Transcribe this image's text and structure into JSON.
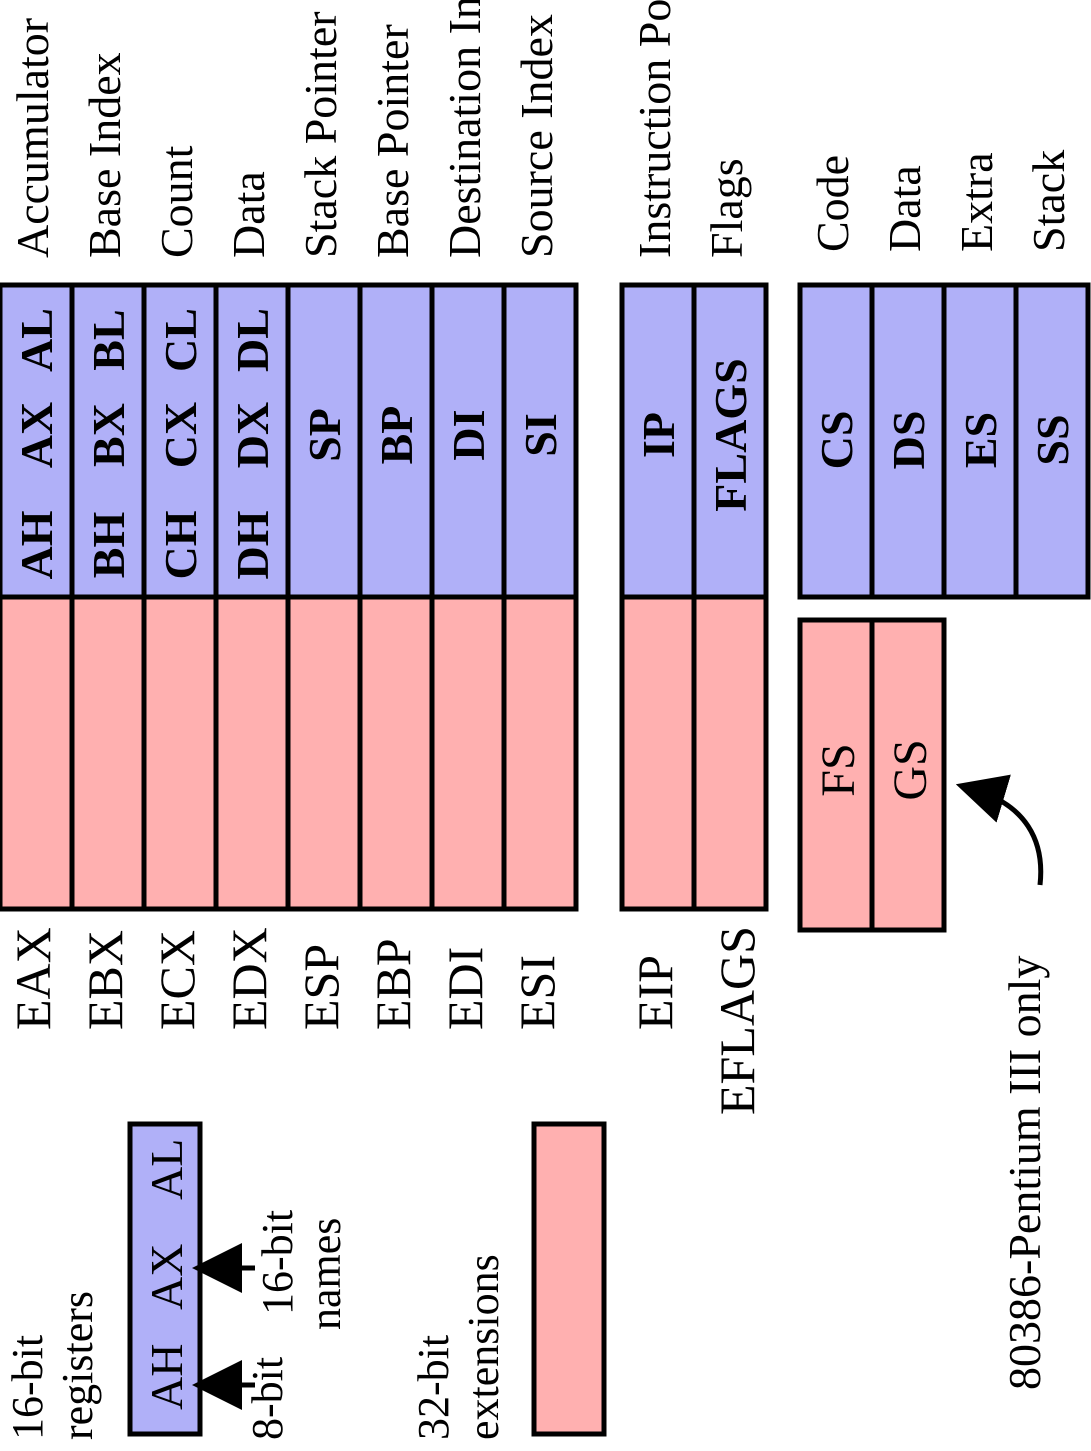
{
  "general_registers": [
    {
      "desc": "Accumulator",
      "ext": "EAX",
      "hi": "AH",
      "x16": "AX",
      "lo": "AL"
    },
    {
      "desc": "Base Index",
      "ext": "EBX",
      "hi": "BH",
      "x16": "BX",
      "lo": "BL"
    },
    {
      "desc": "Count",
      "ext": "ECX",
      "hi": "CH",
      "x16": "CX",
      "lo": "CL"
    },
    {
      "desc": "Data",
      "ext": "EDX",
      "hi": "DH",
      "x16": "DX",
      "lo": "DL"
    },
    {
      "desc": "Stack Pointer",
      "ext": "ESP",
      "x16": "SP"
    },
    {
      "desc": "Base Pointer",
      "ext": "EBP",
      "x16": "BP"
    },
    {
      "desc": "Destination Index",
      "ext": "EDI",
      "x16": "DI"
    },
    {
      "desc": "Source Index",
      "ext": "ESI",
      "x16": "SI"
    }
  ],
  "special_registers": [
    {
      "desc": "Instruction Pointer",
      "ext": "EIP",
      "x16": "IP"
    },
    {
      "desc": "Flags",
      "ext": "EFLAGS",
      "x16": "FLAGS"
    }
  ],
  "segment_registers": [
    {
      "desc": "Code",
      "name": "CS"
    },
    {
      "desc": "Data",
      "name": "DS"
    },
    {
      "desc": "Extra",
      "name": "ES"
    },
    {
      "desc": "Stack",
      "name": "SS"
    }
  ],
  "extra_segments": [
    "FS",
    "GS"
  ],
  "extra_segments_note": "80386-Pentium III only",
  "legend": {
    "reg16_line1": "16-bit",
    "reg16_line2": "registers",
    "sample_hi": "AH",
    "sample_x16": "AX",
    "sample_lo": "AL",
    "bit8": "8-bit",
    "bit16_line1": "16-bit",
    "bit16_line2": "names",
    "ext32_line1": "32-bit",
    "ext32_line2": "extensions"
  },
  "colors": {
    "blue": "#b0b0f8",
    "pink": "#ffb0b0"
  }
}
